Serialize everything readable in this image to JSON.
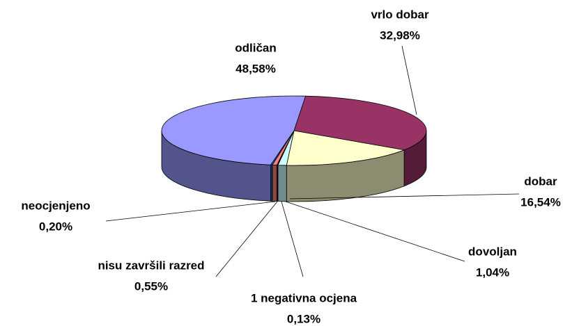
{
  "chart_data": {
    "type": "pie3d",
    "categories": [
      "vrlo dobar",
      "dobar",
      "dovoljan",
      "1 negativna ocjena",
      "nisu završili razred",
      "neocjenjeno",
      "odličan"
    ],
    "values": [
      32.98,
      16.54,
      1.04,
      0.13,
      0.55,
      0.2,
      48.58
    ],
    "value_labels": [
      "32,98%",
      "16,54%",
      "1,04%",
      "0,13%",
      "0,55%",
      "0,20%",
      "48,58%"
    ],
    "colors": [
      "#993366",
      "#ffffcc",
      "#ccffff",
      "#660066",
      "#ff8080",
      "#0066cc",
      "#9999ff"
    ]
  }
}
